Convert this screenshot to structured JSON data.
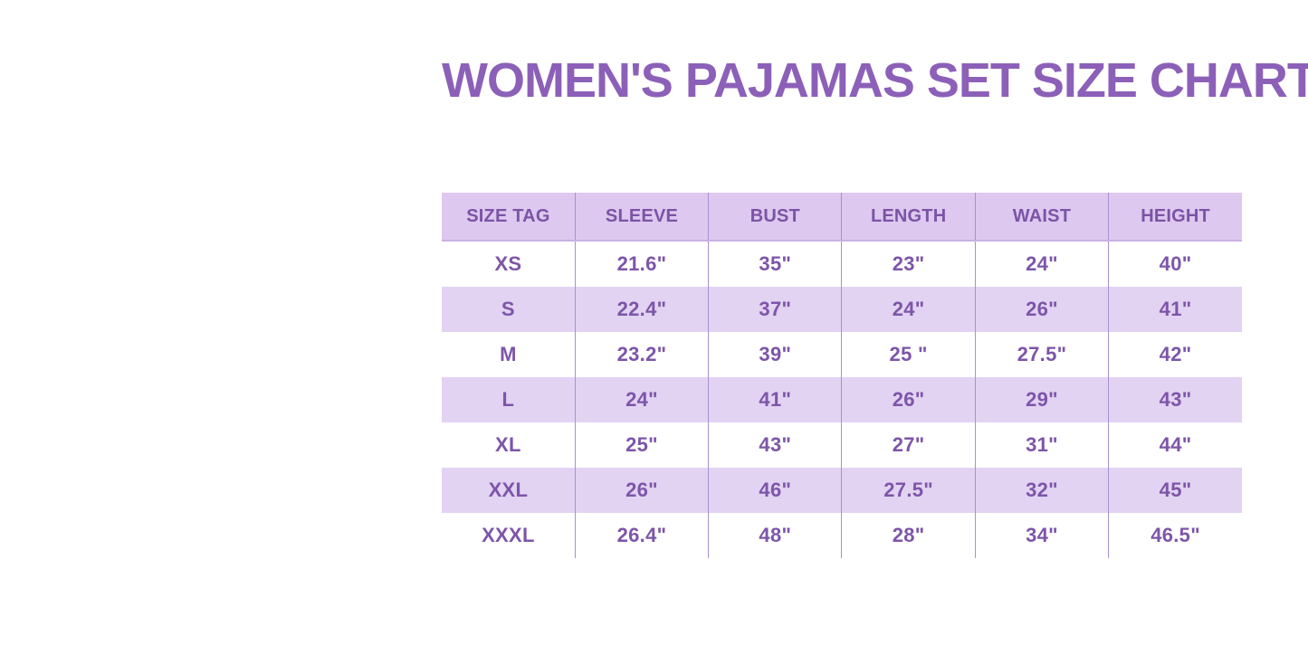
{
  "title": {
    "text": "WOMEN'S PAJAMAS SET SIZE CHART",
    "color": "#8c60b8"
  },
  "chart_data": {
    "type": "table",
    "title": "WOMEN'S PAJAMAS SET SIZE CHART",
    "columns": [
      "SIZE TAG",
      "SLEEVE",
      "BUST",
      "LENGTH",
      "WAIST",
      "HEIGHT"
    ],
    "rows": [
      [
        "XS",
        "21.6\"",
        "35\"",
        "23\"",
        "24\"",
        "40\""
      ],
      [
        "S",
        "22.4\"",
        "37\"",
        "24\"",
        "26\"",
        "41\""
      ],
      [
        "M",
        "23.2\"",
        "39\"",
        "25 \"",
        "27.5\"",
        "42\""
      ],
      [
        "L",
        "24\"",
        "41\"",
        "26\"",
        "29\"",
        "43\""
      ],
      [
        "XL",
        "25\"",
        "43\"",
        "27\"",
        "31\"",
        "44\""
      ],
      [
        "XXL",
        "26\"",
        "46\"",
        "27.5\"",
        "32\"",
        "45\""
      ],
      [
        "XXXL",
        "26.4\"",
        "48\"",
        "28\"",
        "34\"",
        "46.5\""
      ]
    ],
    "layout": {
      "header_background": "#ddc8ef",
      "alternate_row_background": "#e2d3f2",
      "column_divider_color": "#ab8fd2",
      "header_text_color": "#7b53a6",
      "cell_text_color": "#7d55a9",
      "row_striping": "white / lavender alternating starting white"
    }
  }
}
